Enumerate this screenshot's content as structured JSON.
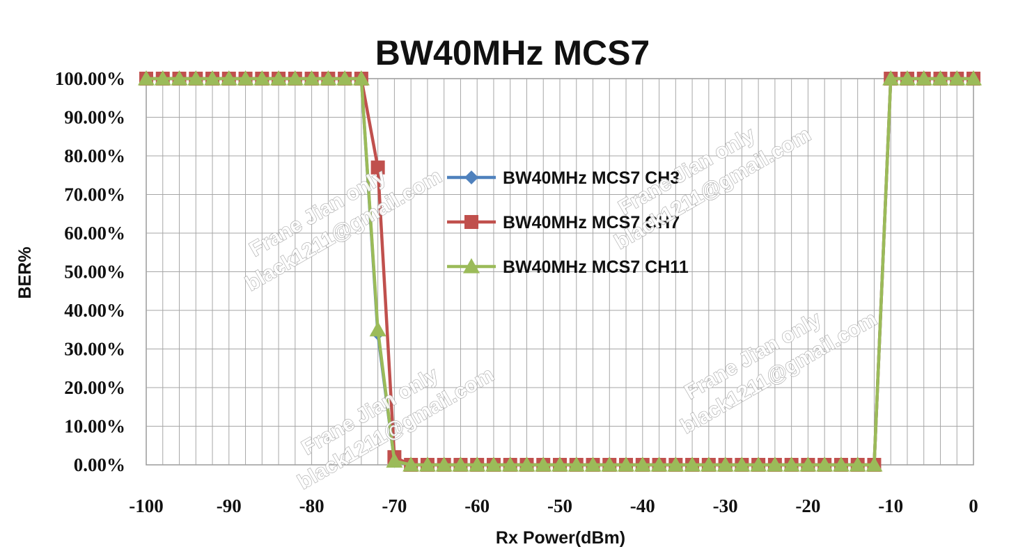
{
  "chart_data": {
    "type": "line",
    "title": "BW40MHz MCS7",
    "xlabel": "Rx Power(dBm)",
    "ylabel": "BER%",
    "xlim": [
      -100,
      0
    ],
    "ylim": [
      0,
      1
    ],
    "x_ticks": [
      "-100",
      "-90",
      "-80",
      "-70",
      "-60",
      "-50",
      "-40",
      "-30",
      "-20",
      "-10",
      "0"
    ],
    "y_ticks": [
      "0.00%",
      "10.00%",
      "20.00%",
      "30.00%",
      "40.00%",
      "50.00%",
      "60.00%",
      "70.00%",
      "80.00%",
      "90.00%",
      "100.00%"
    ],
    "grid": true,
    "legend_position": "center",
    "series": [
      {
        "name": "BW40MHz MCS7 CH3",
        "color": "#4f81bd",
        "marker": "diamond",
        "x": [
          -100,
          -98,
          -96,
          -94,
          -92,
          -90,
          -88,
          -86,
          -84,
          -82,
          -80,
          -78,
          -76,
          -74,
          -72,
          -70,
          -68,
          -66,
          -64,
          -62,
          -60,
          -58,
          -56,
          -54,
          -52,
          -50,
          -48,
          -46,
          -44,
          -42,
          -40,
          -38,
          -36,
          -34,
          -32,
          -30,
          -28,
          -26,
          -24,
          -22,
          -20,
          -18,
          -16,
          -14,
          -12,
          -10,
          -8,
          -6,
          -4,
          -2,
          0
        ],
        "y": [
          1,
          1,
          1,
          1,
          1,
          1,
          1,
          1,
          1,
          1,
          1,
          1,
          1,
          1,
          0.34,
          0.01,
          0,
          0,
          0,
          0,
          0,
          0,
          0,
          0,
          0,
          0,
          0,
          0,
          0,
          0,
          0,
          0,
          0,
          0,
          0,
          0,
          0,
          0,
          0,
          0,
          0,
          0,
          0,
          0,
          0,
          1,
          1,
          1,
          1,
          1,
          1
        ]
      },
      {
        "name": "BW40MHz MCS7 CH7",
        "color": "#c0504d",
        "marker": "square",
        "x": [
          -100,
          -98,
          -96,
          -94,
          -92,
          -90,
          -88,
          -86,
          -84,
          -82,
          -80,
          -78,
          -76,
          -74,
          -72,
          -70,
          -68,
          -66,
          -64,
          -62,
          -60,
          -58,
          -56,
          -54,
          -52,
          -50,
          -48,
          -46,
          -44,
          -42,
          -40,
          -38,
          -36,
          -34,
          -32,
          -30,
          -28,
          -26,
          -24,
          -22,
          -20,
          -18,
          -16,
          -14,
          -12,
          -10,
          -8,
          -6,
          -4,
          -2,
          0
        ],
        "y": [
          1,
          1,
          1,
          1,
          1,
          1,
          1,
          1,
          1,
          1,
          1,
          1,
          1,
          1,
          0.77,
          0.02,
          0,
          0,
          0,
          0,
          0,
          0,
          0,
          0,
          0,
          0,
          0,
          0,
          0,
          0,
          0,
          0,
          0,
          0,
          0,
          0,
          0,
          0,
          0,
          0,
          0,
          0,
          0,
          0,
          0,
          1,
          1,
          1,
          1,
          1,
          1
        ]
      },
      {
        "name": "BW40MHz MCS7 CH11",
        "color": "#9bbb59",
        "marker": "triangle",
        "x": [
          -100,
          -98,
          -96,
          -94,
          -92,
          -90,
          -88,
          -86,
          -84,
          -82,
          -80,
          -78,
          -76,
          -74,
          -72,
          -70,
          -68,
          -66,
          -64,
          -62,
          -60,
          -58,
          -56,
          -54,
          -52,
          -50,
          -48,
          -46,
          -44,
          -42,
          -40,
          -38,
          -36,
          -34,
          -32,
          -30,
          -28,
          -26,
          -24,
          -22,
          -20,
          -18,
          -16,
          -14,
          -12,
          -10,
          -8,
          -6,
          -4,
          -2,
          0
        ],
        "y": [
          1,
          1,
          1,
          1,
          1,
          1,
          1,
          1,
          1,
          1,
          1,
          1,
          1,
          1,
          0.35,
          0.01,
          0,
          0,
          0,
          0,
          0,
          0,
          0,
          0,
          0,
          0,
          0,
          0,
          0,
          0,
          0,
          0,
          0,
          0,
          0,
          0,
          0,
          0,
          0,
          0,
          0,
          0,
          0,
          0,
          0,
          1,
          1,
          1,
          1,
          1,
          1
        ]
      }
    ]
  },
  "watermarks": [
    {
      "line1": "Frane Jian only",
      "line2": "black1211@gmail.com"
    },
    {
      "line1": "Frane Jian only",
      "line2": "black1211@gmail.com"
    },
    {
      "line1": "Frane Jian only",
      "line2": "black1211@gmail.com"
    },
    {
      "line1": "Frane Jian only",
      "line2": "black1211@gmail.com"
    }
  ]
}
